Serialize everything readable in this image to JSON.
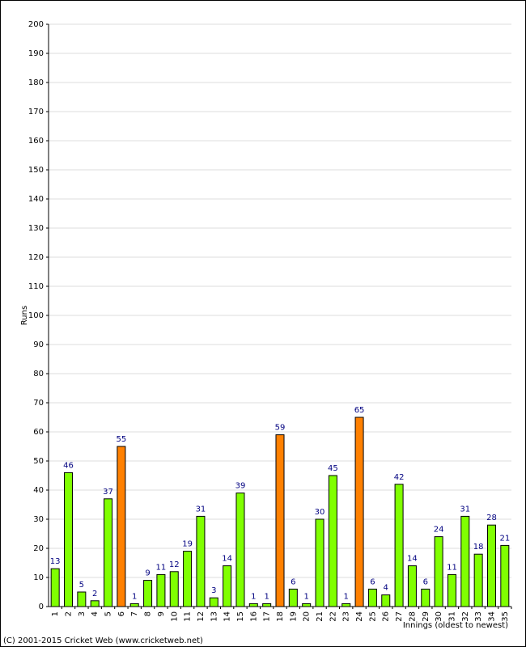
{
  "chart_data": {
    "type": "bar",
    "y_label": "Runs",
    "x_label": "Innings (oldest to newest)",
    "footer": "(C) 2001-2015 Cricket Web (www.cricketweb.net)",
    "categories": [
      "1",
      "2",
      "3",
      "4",
      "5",
      "6",
      "7",
      "8",
      "9",
      "10",
      "11",
      "12",
      "13",
      "14",
      "15",
      "16",
      "17",
      "18",
      "19",
      "20",
      "21",
      "22",
      "23",
      "24",
      "25",
      "26",
      "27",
      "28",
      "29",
      "30",
      "31",
      "32",
      "33",
      "34",
      "35"
    ],
    "values": [
      13,
      46,
      5,
      2,
      37,
      55,
      1,
      9,
      11,
      12,
      19,
      31,
      3,
      14,
      39,
      1,
      1,
      59,
      6,
      1,
      30,
      45,
      1,
      65,
      6,
      4,
      42,
      14,
      6,
      24,
      11,
      31,
      18,
      28,
      21
    ],
    "colors": [
      "#80ff00",
      "#80ff00",
      "#80ff00",
      "#80ff00",
      "#80ff00",
      "#ff8000",
      "#80ff00",
      "#80ff00",
      "#80ff00",
      "#80ff00",
      "#80ff00",
      "#80ff00",
      "#80ff00",
      "#80ff00",
      "#80ff00",
      "#80ff00",
      "#80ff00",
      "#ff8000",
      "#80ff00",
      "#80ff00",
      "#80ff00",
      "#80ff00",
      "#80ff00",
      "#ff8000",
      "#80ff00",
      "#80ff00",
      "#80ff00",
      "#80ff00",
      "#80ff00",
      "#80ff00",
      "#80ff00",
      "#80ff00",
      "#80ff00",
      "#80ff00",
      "#80ff00"
    ],
    "label_color": "#000080",
    "ylim": [
      0,
      200
    ],
    "yticks": [
      0,
      10,
      20,
      30,
      40,
      50,
      60,
      70,
      80,
      90,
      100,
      110,
      120,
      130,
      140,
      150,
      160,
      170,
      180,
      190,
      200
    ],
    "grid": true
  }
}
